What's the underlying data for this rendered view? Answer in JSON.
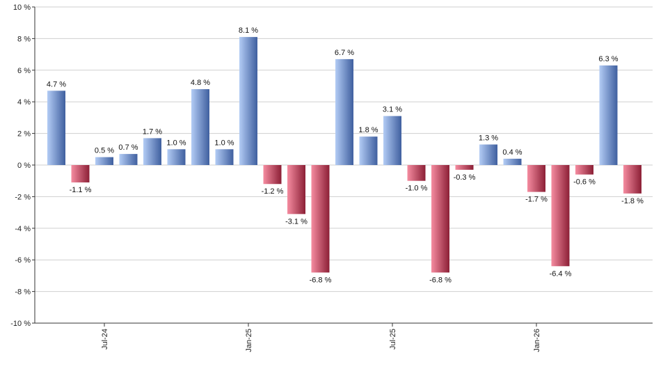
{
  "chart_data": {
    "type": "bar",
    "title": "",
    "xlabel": "",
    "ylabel": "",
    "ylim": [
      -10,
      10
    ],
    "y_ticks": [
      -10,
      -8,
      -6,
      -4,
      -2,
      0,
      2,
      4,
      6,
      8,
      10
    ],
    "y_tick_suffix": " %",
    "grid": true,
    "legend": "none",
    "x_tick_labels": [
      {
        "label": "Jul-24",
        "at_index": 2
      },
      {
        "label": "Jan-25",
        "at_index": 8
      },
      {
        "label": "Jul-25",
        "at_index": 14
      },
      {
        "label": "Jan-26",
        "at_index": 20
      }
    ],
    "values": [
      4.7,
      -1.1,
      0.5,
      0.7,
      1.7,
      1.0,
      4.8,
      1.0,
      8.1,
      -1.2,
      -3.1,
      -6.8,
      6.7,
      1.8,
      3.1,
      -1.0,
      -6.8,
      -0.3,
      1.3,
      0.4,
      -1.7,
      -6.4,
      -0.6,
      6.3,
      -1.8
    ],
    "labels": [
      "4.7 %",
      "-1.1 %",
      "0.5 %",
      "0.7 %",
      "1.7 %",
      "1.0 %",
      "4.8 %",
      "1.0 %",
      "8.1 %",
      "-1.2 %",
      "-3.1 %",
      "-6.8 %",
      "6.7 %",
      "1.8 %",
      "3.1 %",
      "-1.0 %",
      "-6.8 %",
      "-0.3 %",
      "1.3 %",
      "0.4 %",
      "-1.7 %",
      "-6.4 %",
      "-0.6 %",
      "6.3 %",
      "-1.8 %"
    ],
    "colors": {
      "positive_light": "#b3ccf5",
      "positive_dark": "#3f5f9f",
      "negative_light": "#f58ca0",
      "negative_dark": "#8c1f36",
      "grid": "#cfcfcf",
      "axis": "#333333"
    }
  }
}
